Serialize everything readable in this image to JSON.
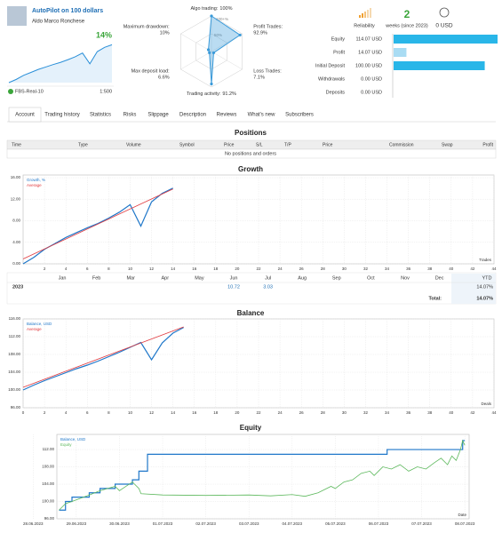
{
  "header": {
    "title": "AutoPilot on 100 dollars",
    "author": "Aldo Marco Ronchese",
    "growth_label": "14%",
    "server": "FBS-Real-10",
    "leverage": "1:500",
    "reliability": "Reliability",
    "weeks": 2,
    "weeks_caption": "weeks (since 2023)",
    "subscription": "0 USD"
  },
  "radar": {
    "ring_labels": [
      "100+%",
      "50%"
    ],
    "color": "#3a9ad9",
    "axes": [
      {
        "label": "Algo trading:",
        "value": 100,
        "value_label": "100%"
      },
      {
        "label": "Profit Trades:",
        "value": 92.9,
        "value_label": "92.9%"
      },
      {
        "label": "Loss Trades:",
        "value": 7.1,
        "value_label": "7.1%"
      },
      {
        "label": "Trading activity:",
        "value": 91.2,
        "value_label": "91.2%"
      },
      {
        "label": "Max deposit load:",
        "value": 6.6,
        "value_label": "6.6%"
      },
      {
        "label": "Maximum drawdown:",
        "value": 10,
        "value_label": "10%"
      }
    ]
  },
  "stats": [
    {
      "label": "Equity",
      "value": 114.07,
      "value_label": "114.07 USD",
      "color": "#29b6e8"
    },
    {
      "label": "Profit",
      "value": 14.07,
      "value_label": "14.07 USD",
      "color": "#a9dcf3"
    },
    {
      "label": "Initial Deposit",
      "value": 100.0,
      "value_label": "100.00 USD",
      "color": "#29b6e8"
    },
    {
      "label": "Withdrawals",
      "value": 0,
      "value_label": "0.00 USD",
      "color": "#29b6e8"
    },
    {
      "label": "Deposits",
      "value": 0,
      "value_label": "0.00 USD",
      "color": "#29b6e8"
    }
  ],
  "tabs": [
    "Account",
    "Trading history",
    "Statistics",
    "Risks",
    "Slippage",
    "Description",
    "Reviews",
    "What's new",
    "Subscribers"
  ],
  "positions": {
    "title": "Positions",
    "columns": [
      "Time",
      "Type",
      "Volume",
      "Symbol",
      "Price",
      "S/L",
      "T/P",
      "Price",
      "Commission",
      "Swap",
      "Profit"
    ],
    "empty": "No positions and orders"
  },
  "growth": {
    "title": "Growth",
    "type": "line",
    "x_label": "Trades",
    "xlim": [
      0,
      44
    ],
    "xticks": [
      2,
      4,
      6,
      8,
      10,
      12,
      14,
      16,
      18,
      20,
      22,
      24,
      26,
      28,
      30,
      32,
      34,
      36,
      38,
      40,
      42,
      44
    ],
    "ylim": [
      0,
      16.5
    ],
    "yticks": [
      {
        "value": 0,
        "label": "0.00"
      },
      {
        "value": 4,
        "label": "4.00"
      },
      {
        "value": 8,
        "label": "8.00"
      },
      {
        "value": 12,
        "label": "12.00"
      },
      {
        "value": 16,
        "label": "16.00"
      }
    ],
    "series": [
      {
        "name": "Growth, %",
        "color": "#1f77c9",
        "x": [
          0,
          1,
          2,
          3,
          4,
          5,
          6,
          7,
          8,
          9,
          10,
          11,
          12,
          13,
          14
        ],
        "values": [
          0,
          1.2,
          2.7,
          3.8,
          4.9,
          5.8,
          6.7,
          7.5,
          8.5,
          9.6,
          11,
          7,
          11.5,
          13.1,
          14.07
        ]
      },
      {
        "name": "Average",
        "color": "#e0393e",
        "x": [
          0,
          14
        ],
        "values": [
          0.9,
          13.9
        ]
      }
    ]
  },
  "monthly": {
    "months": [
      "Jan",
      "Feb",
      "Mar",
      "Apr",
      "May",
      "Jun",
      "Jul",
      "Aug",
      "Sep",
      "Oct",
      "Nov",
      "Dec"
    ],
    "ytd_header": "YTD",
    "rows": [
      {
        "year": "2023",
        "values": [
          null,
          null,
          null,
          null,
          null,
          10.72,
          3.03,
          null,
          null,
          null,
          null,
          null
        ],
        "ytd": 14.07,
        "ytd_label": "14.07%"
      }
    ],
    "total_label": "Total:",
    "total": 14.07,
    "total_value_label": "14.07%"
  },
  "balance": {
    "title": "Balance",
    "type": "line",
    "x_label": "Deals",
    "xlim": [
      0,
      44
    ],
    "xticks": [
      0,
      2,
      4,
      6,
      8,
      10,
      12,
      14,
      16,
      18,
      20,
      22,
      24,
      26,
      28,
      30,
      32,
      34,
      36,
      38,
      40,
      42,
      44
    ],
    "ylim": [
      96,
      116
    ],
    "yticks": [
      {
        "value": 96,
        "label": "96.00"
      },
      {
        "value": 100,
        "label": "100.00"
      },
      {
        "value": 104,
        "label": "104.00"
      },
      {
        "value": 108,
        "label": "108.00"
      },
      {
        "value": 112,
        "label": "112.00"
      },
      {
        "value": 116,
        "label": "116.00"
      }
    ],
    "series": [
      {
        "name": "Balance, USD",
        "color": "#1f77c9",
        "x": [
          0,
          1,
          2,
          3,
          4,
          5,
          6,
          7,
          8,
          9,
          10,
          11,
          12,
          13,
          14,
          15
        ],
        "values": [
          100,
          101.1,
          102.1,
          103,
          103.9,
          104.8,
          105.6,
          106.5,
          107.5,
          108.5,
          109.6,
          110.7,
          106.8,
          110.6,
          112.8,
          114.07
        ]
      },
      {
        "name": "Average",
        "color": "#e0393e",
        "x": [
          0,
          15
        ],
        "values": [
          100.6,
          114.2
        ]
      }
    ]
  },
  "equity": {
    "title": "Equity",
    "type": "line",
    "x_label": "Date",
    "xlim": [
      0.55,
      10.1
    ],
    "xticks": [
      {
        "value": 0,
        "label": "28.06.2023"
      },
      {
        "value": 1,
        "label": "29.06.2023"
      },
      {
        "value": 2,
        "label": "30.06.2023"
      },
      {
        "value": 3,
        "label": "01.07.2023"
      },
      {
        "value": 4,
        "label": "02.07.2023"
      },
      {
        "value": 5,
        "label": "03.07.2023"
      },
      {
        "value": 6,
        "label": "04.07.2023"
      },
      {
        "value": 7,
        "label": "05.07.2023"
      },
      {
        "value": 8,
        "label": "06.07.2023"
      },
      {
        "value": 9,
        "label": "07.07.2023"
      },
      {
        "value": 10,
        "label": "08.07.2023"
      }
    ],
    "ylim": [
      96,
      115.5
    ],
    "yticks": [
      {
        "value": 96,
        "label": "96.00"
      },
      {
        "value": 100,
        "label": "100.00"
      },
      {
        "value": 104,
        "label": "104.00"
      },
      {
        "value": 108,
        "label": "108.00"
      },
      {
        "value": 112,
        "label": "112.00"
      }
    ],
    "series": [
      {
        "name": "Balance, USD",
        "color": "#1f77c9",
        "x": [
          0.6,
          0.75,
          0.75,
          0.9,
          0.9,
          1.3,
          1.3,
          1.55,
          1.55,
          1.9,
          1.9,
          2.3,
          2.3,
          2.45,
          2.45,
          2.65,
          2.65,
          8.2,
          8.2,
          9.95,
          9.95,
          10.0
        ],
        "values": [
          98,
          98,
          100,
          100,
          101,
          101,
          102,
          102,
          103,
          103,
          104,
          104,
          105,
          105,
          107,
          107,
          110.9,
          110.9,
          112,
          112,
          114.07,
          114.07
        ]
      },
      {
        "name": "Equity",
        "color": "#5cb85c",
        "x": [
          0.6,
          0.75,
          0.9,
          1.3,
          1.55,
          1.9,
          2.0,
          2.3,
          2.45,
          2.5,
          3,
          4,
          5,
          5.5,
          6,
          6.3,
          6.6,
          6.9,
          7,
          7.2,
          7.4,
          7.6,
          7.8,
          7.9,
          8.1,
          8.3,
          8.5,
          8.7,
          8.9,
          9.1,
          9.3,
          9.45,
          9.6,
          9.7,
          9.8,
          9.9,
          9.95,
          10.0
        ],
        "values": [
          98,
          99.5,
          100,
          101.5,
          102.5,
          103.5,
          102.5,
          104.5,
          103,
          101.8,
          101.5,
          101.4,
          101.5,
          101.3,
          101.6,
          101.2,
          102,
          103.5,
          103,
          104.5,
          105,
          106.5,
          107,
          106,
          108,
          107.5,
          108.5,
          107,
          108,
          107.5,
          109,
          110,
          108.5,
          110.5,
          109.5,
          112,
          114.07,
          113
        ]
      }
    ]
  }
}
